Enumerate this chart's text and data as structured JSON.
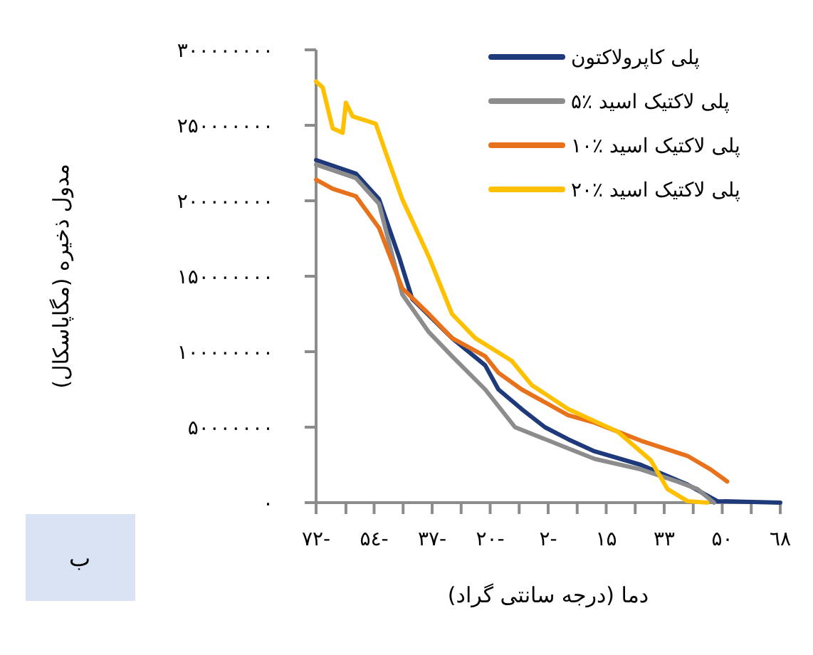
{
  "chart_data": {
    "type": "line",
    "xlabel": "دما (درجه سانتی گراد)",
    "ylabel": "مدول ذخیره (مگاپاسکال)",
    "annotations": [
      "ب"
    ],
    "legend": "top right",
    "grid": false,
    "xlim": [
      -72,
      68
    ],
    "xticks": [
      {
        "value": -72,
        "label": "۷۲-"
      },
      {
        "value": -63,
        "label": null
      },
      {
        "value": -54.5,
        "label": "۵٤-"
      },
      {
        "value": -45.75,
        "label": null
      },
      {
        "value": -37,
        "label": "۳۷-"
      },
      {
        "value": -28.25,
        "label": null
      },
      {
        "value": -19.5,
        "label": "۲۰-"
      },
      {
        "value": -10.75,
        "label": null
      },
      {
        "value": -2,
        "label": "۲-"
      },
      {
        "value": 6.75,
        "label": null
      },
      {
        "value": 15.5,
        "label": "۱۵"
      },
      {
        "value": 24.25,
        "label": null
      },
      {
        "value": 33,
        "label": "۳۳"
      },
      {
        "value": 41.75,
        "label": null
      },
      {
        "value": 50.5,
        "label": "۵۰"
      },
      {
        "value": 59.25,
        "label": null
      },
      {
        "value": 68,
        "label": "٦۸"
      }
    ],
    "ylim": [
      0,
      300000000
    ],
    "yticks": [
      {
        "value": 0,
        "label": "۰"
      },
      {
        "value": 50000000,
        "label": "۵۰۰۰۰۰۰۰"
      },
      {
        "value": 100000000,
        "label": "۱۰۰۰۰۰۰۰۰"
      },
      {
        "value": 150000000,
        "label": "۱۵۰۰۰۰۰۰۰"
      },
      {
        "value": 200000000,
        "label": "۲۰۰۰۰۰۰۰۰"
      },
      {
        "value": 250000000,
        "label": "۲۵۰۰۰۰۰۰۰"
      },
      {
        "value": 300000000,
        "label": "۳۰۰۰۰۰۰۰۰"
      }
    ],
    "series": [
      {
        "name": "پلی کاپرولاکتون",
        "color": "#1f3a7a",
        "x": [
          -72,
          -60,
          -53,
          -47,
          -43,
          -31,
          -21,
          -17,
          -10,
          -3,
          4,
          12,
          26,
          40,
          49,
          68
        ],
        "values": [
          227000000,
          218000000,
          201000000,
          163000000,
          135000000,
          109000000,
          91000000,
          75000000,
          62000000,
          50000000,
          42000000,
          34000000,
          25000000,
          12000000,
          1000000,
          0
        ]
      },
      {
        "name": "۵٪ پلی لاکتیک اسید",
        "color": "#8c8c8c",
        "x": [
          -72,
          -60,
          -53,
          -46,
          -38,
          -31,
          -21,
          -12,
          4,
          12,
          26,
          37,
          43,
          48
        ],
        "values": [
          224000000,
          215000000,
          198000000,
          138000000,
          113000000,
          97000000,
          75000000,
          50000000,
          36000000,
          29000000,
          22000000,
          14000000,
          9000000,
          0
        ]
      },
      {
        "name": "۱۰٪ پلی لاکتیک اسید",
        "color": "#e8711c",
        "x": [
          -72,
          -67,
          -60,
          -53,
          -46,
          -38,
          -31,
          -21,
          -17,
          -10,
          4,
          12,
          26,
          40,
          47,
          52
        ],
        "values": [
          214000000,
          208000000,
          203000000,
          182000000,
          142000000,
          125000000,
          109000000,
          97000000,
          86000000,
          75000000,
          58000000,
          53000000,
          41000000,
          31000000,
          22000000,
          14000000
        ]
      },
      {
        "name": "۲۰٪ پلی لاکتیک اسید",
        "color": "#ffc000",
        "x": [
          -72,
          -70,
          -67,
          -64,
          -63,
          -61,
          -54,
          -51,
          -46,
          -38,
          -31,
          -24,
          -13,
          -7,
          4,
          19,
          29,
          34,
          40,
          46
        ],
        "values": [
          279000000,
          275000000,
          248000000,
          245000000,
          265000000,
          256000000,
          251000000,
          232000000,
          201000000,
          163000000,
          125000000,
          109000000,
          94000000,
          78000000,
          62000000,
          47000000,
          28000000,
          9000000,
          1000000,
          0
        ]
      }
    ]
  }
}
